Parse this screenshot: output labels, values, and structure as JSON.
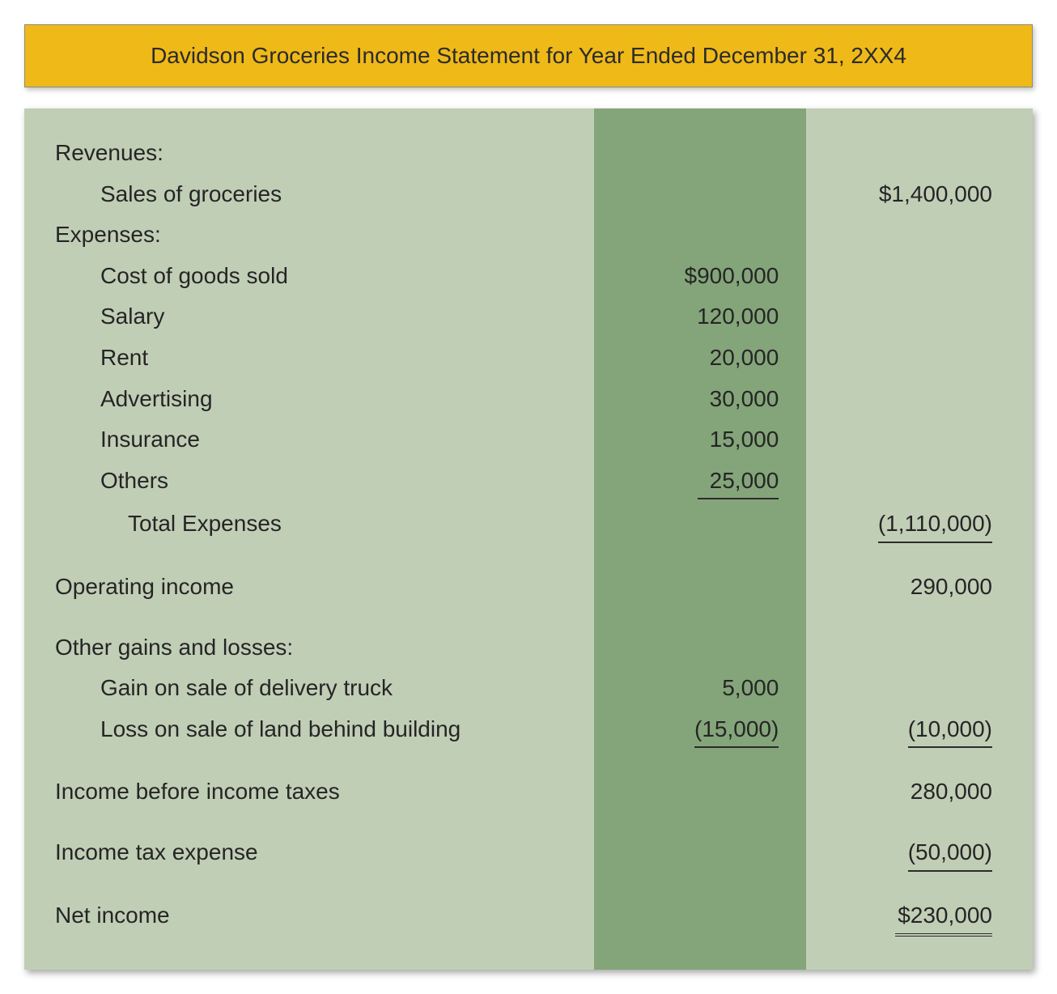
{
  "colors": {
    "title_bg": "#efb918",
    "title_border": "#8a8c7a",
    "table_bg": "#c1ceb6",
    "band_bg": "#84a57a",
    "text": "#252525",
    "page_bg": "#ffffff"
  },
  "typography": {
    "title_fontsize_pt": 21,
    "body_fontsize_pt": 21,
    "family": "Segoe UI, Arial, sans-serif"
  },
  "layout": {
    "band_left_pct": 56.5,
    "band_width_pct": 21
  },
  "title": "Davidson Groceries Income Statement for Year Ended December 31, 2XX4",
  "rows": [
    {
      "label": "Revenues:",
      "indent": 0,
      "mid": "",
      "right": ""
    },
    {
      "label": "Sales of groceries",
      "indent": 1,
      "mid": "",
      "right": "$1,400,000"
    },
    {
      "label": "Expenses:",
      "indent": 0,
      "mid": "",
      "right": ""
    },
    {
      "label": "Cost of goods sold",
      "indent": 1,
      "mid": "$900,000",
      "right": ""
    },
    {
      "label": "Salary",
      "indent": 1,
      "mid": "120,000",
      "right": ""
    },
    {
      "label": "Rent",
      "indent": 1,
      "mid": "20,000",
      "right": ""
    },
    {
      "label": "Advertising",
      "indent": 1,
      "mid": "30,000",
      "right": ""
    },
    {
      "label": "Insurance",
      "indent": 1,
      "mid": "15,000",
      "right": ""
    },
    {
      "label": "Others",
      "indent": 1,
      "mid": "25,000",
      "mid_underline": true,
      "right": ""
    },
    {
      "label": "Total Expenses",
      "indent": 2,
      "mid": "",
      "right": "(1,110,000)",
      "right_underline": true
    },
    {
      "spacer": true
    },
    {
      "label": "Operating income",
      "indent": 0,
      "mid": "",
      "right": "290,000"
    },
    {
      "spacer": true
    },
    {
      "label": "Other gains and losses:",
      "indent": 0,
      "mid": "",
      "right": ""
    },
    {
      "label": "Gain on sale of delivery truck",
      "indent": 1,
      "mid": "5,000",
      "right": ""
    },
    {
      "label": "Loss on sale of land behind building",
      "indent": 1,
      "mid": "(15,000)",
      "mid_underline": true,
      "right": "(10,000)",
      "right_underline": true
    },
    {
      "spacer": true
    },
    {
      "label": "Income before income taxes",
      "indent": 0,
      "mid": "",
      "right": "280,000"
    },
    {
      "spacer": true
    },
    {
      "label": "Income tax expense",
      "indent": 0,
      "mid": "",
      "right": "(50,000)",
      "right_underline": true
    },
    {
      "spacer": true
    },
    {
      "label": "Net income",
      "indent": 0,
      "mid": "",
      "right": "$230,000",
      "right_double": true
    }
  ]
}
